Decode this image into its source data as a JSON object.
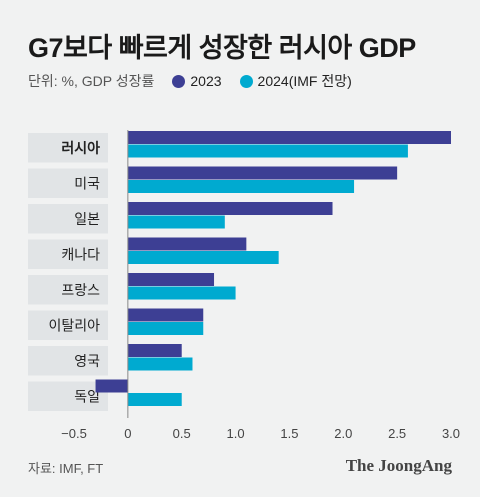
{
  "title": "G7보다 빠르게 성장한 러시아 GDP",
  "unit_label": "단위: %, GDP 성장률",
  "source": "자료: IMF, FT",
  "brand": "The JoongAng",
  "colors": {
    "2023": "#3d3f94",
    "2024": "#00aad0",
    "axis": "#888888",
    "label_bg": "#e1e4e6"
  },
  "chart_data": {
    "type": "bar",
    "orientation": "horizontal",
    "title": "G7보다 빠르게 성장한 러시아 GDP",
    "categories": [
      "러시아",
      "미국",
      "일본",
      "캐나다",
      "프랑스",
      "이탈리아",
      "영국",
      "독일"
    ],
    "highlight_category": "러시아",
    "series": [
      {
        "name": "2023",
        "values": [
          3.0,
          2.5,
          1.9,
          1.1,
          0.8,
          0.7,
          0.5,
          -0.3
        ]
      },
      {
        "name": "2024(IMF 전망)",
        "values": [
          2.6,
          2.1,
          0.9,
          1.4,
          1.0,
          0.7,
          0.6,
          0.5
        ]
      }
    ],
    "xlim": [
      -0.5,
      3.0
    ],
    "xticks": [
      "−0.5",
      "0",
      "0.5",
      "1.0",
      "1.5",
      "2.0",
      "2.5",
      "3.0"
    ],
    "xtick_values": [
      -0.5,
      0,
      0.5,
      1.0,
      1.5,
      2.0,
      2.5,
      3.0
    ],
    "legend_position": "top-left",
    "grid": false
  }
}
